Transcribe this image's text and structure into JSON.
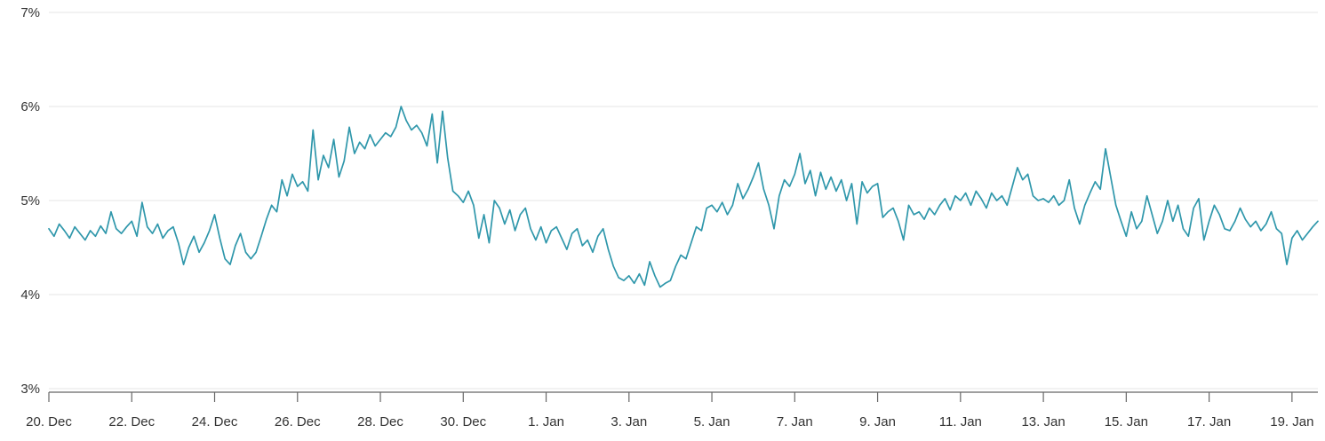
{
  "chart": {
    "line_color": "#2f97ab",
    "grid_color": "#e6e6e6",
    "axis_color": "#666666",
    "label_color": "#333333",
    "background": "#ffffff"
  },
  "chart_data": {
    "type": "line",
    "title": "",
    "xlabel": "",
    "ylabel": "",
    "unit": "%",
    "y_min": 3,
    "y_max": 7,
    "y_ticks": [
      {
        "value": 3,
        "label": "3%"
      },
      {
        "value": 4,
        "label": "4%"
      },
      {
        "value": 5,
        "label": "5%"
      },
      {
        "value": 6,
        "label": "6%"
      },
      {
        "value": 7,
        "label": "7%"
      }
    ],
    "x_tick_labels": [
      "20. Dec",
      "22. Dec",
      "24. Dec",
      "26. Dec",
      "28. Dec",
      "30. Dec",
      "1. Jan",
      "3. Jan",
      "5. Jan",
      "7. Jan",
      "9. Jan",
      "11. Jan",
      "13. Jan",
      "15. Jan",
      "17. Jan",
      "19. Jan"
    ],
    "x_tick_every": 16,
    "points_per_day": 8,
    "legend": false,
    "grid": "horizontal",
    "values": [
      4.7,
      4.62,
      4.75,
      4.68,
      4.6,
      4.72,
      4.65,
      4.58,
      4.68,
      4.62,
      4.73,
      4.65,
      4.88,
      4.7,
      4.65,
      4.72,
      4.78,
      4.62,
      4.98,
      4.72,
      4.65,
      4.75,
      4.6,
      4.68,
      4.72,
      4.55,
      4.32,
      4.5,
      4.62,
      4.45,
      4.55,
      4.68,
      4.85,
      4.6,
      4.38,
      4.32,
      4.52,
      4.65,
      4.45,
      4.38,
      4.45,
      4.62,
      4.8,
      4.95,
      4.88,
      5.22,
      5.05,
      5.28,
      5.15,
      5.2,
      5.1,
      5.75,
      5.22,
      5.48,
      5.35,
      5.65,
      5.25,
      5.42,
      5.78,
      5.5,
      5.62,
      5.55,
      5.7,
      5.58,
      5.65,
      5.72,
      5.68,
      5.78,
      6.0,
      5.85,
      5.75,
      5.8,
      5.72,
      5.58,
      5.92,
      5.4,
      5.95,
      5.45,
      5.1,
      5.05,
      4.98,
      5.1,
      4.95,
      4.6,
      4.85,
      4.55,
      5.0,
      4.92,
      4.75,
      4.9,
      4.68,
      4.85,
      4.92,
      4.7,
      4.58,
      4.72,
      4.55,
      4.68,
      4.72,
      4.6,
      4.48,
      4.65,
      4.7,
      4.52,
      4.58,
      4.45,
      4.62,
      4.7,
      4.48,
      4.3,
      4.18,
      4.15,
      4.2,
      4.12,
      4.22,
      4.1,
      4.35,
      4.2,
      4.08,
      4.12,
      4.15,
      4.3,
      4.42,
      4.38,
      4.55,
      4.72,
      4.68,
      4.92,
      4.95,
      4.88,
      4.98,
      4.85,
      4.95,
      5.18,
      5.02,
      5.12,
      5.25,
      5.4,
      5.12,
      4.95,
      4.7,
      5.05,
      5.22,
      5.15,
      5.28,
      5.5,
      5.18,
      5.32,
      5.05,
      5.3,
      5.12,
      5.25,
      5.1,
      5.22,
      5.0,
      5.18,
      4.75,
      5.2,
      5.08,
      5.15,
      5.18,
      4.82,
      4.88,
      4.92,
      4.78,
      4.58,
      4.95,
      4.85,
      4.88,
      4.8,
      4.92,
      4.85,
      4.95,
      5.02,
      4.9,
      5.05,
      5.0,
      5.08,
      4.95,
      5.1,
      5.02,
      4.92,
      5.08,
      5.0,
      5.05,
      4.95,
      5.15,
      5.35,
      5.22,
      5.28,
      5.05,
      5.0,
      5.02,
      4.98,
      5.05,
      4.95,
      5.0,
      5.22,
      4.92,
      4.75,
      4.95,
      5.08,
      5.2,
      5.12,
      5.55,
      5.25,
      4.95,
      4.78,
      4.62,
      4.88,
      4.7,
      4.78,
      5.05,
      4.85,
      4.65,
      4.78,
      5.0,
      4.78,
      4.95,
      4.7,
      4.62,
      4.92,
      5.02,
      4.58,
      4.78,
      4.95,
      4.85,
      4.7,
      4.68,
      4.78,
      4.92,
      4.8,
      4.72,
      4.78,
      4.68,
      4.75,
      4.88,
      4.7,
      4.65,
      4.32,
      4.6,
      4.68,
      4.58,
      4.65,
      4.72,
      4.78
    ]
  }
}
